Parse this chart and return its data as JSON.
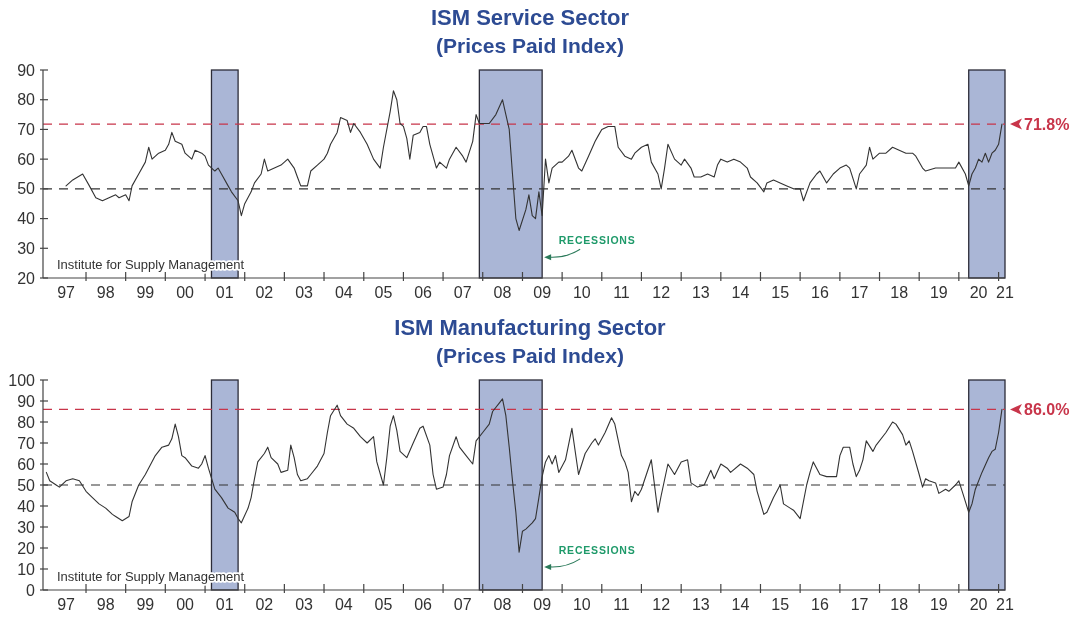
{
  "chart_data": [
    {
      "type": "line",
      "title": "ISM Service Sector",
      "subtitle": "(Prices Paid Index)",
      "series": [
        {
          "color": "#333333",
          "x": [
            "1997-07",
            "1997-09",
            "1997-12",
            "1998-02",
            "1998-04",
            "1998-06",
            "1998-08",
            "1998-10",
            "1998-11",
            "1999-01",
            "1999-02",
            "1999-03",
            "1999-05",
            "1999-07",
            "1999-08",
            "1999-09",
            "1999-11",
            "2000-01",
            "2000-02",
            "2000-03",
            "2000-04",
            "2000-06",
            "2000-07",
            "2000-09",
            "2000-10",
            "2000-12",
            "2001-01",
            "2001-02",
            "2001-04",
            "2001-05",
            "2001-06",
            "2001-08",
            "2001-09",
            "2001-11",
            "2001-12",
            "2002-01",
            "2002-03",
            "2002-04",
            "2002-06",
            "2002-07",
            "2002-08",
            "2002-10",
            "2002-12",
            "2003-02",
            "2003-04",
            "2003-05",
            "2003-06",
            "2003-08",
            "2003-09",
            "2003-11",
            "2004-01",
            "2004-02",
            "2004-03",
            "2004-05",
            "2004-06",
            "2004-08",
            "2004-09",
            "2004-10",
            "2004-12",
            "2005-02",
            "2005-04",
            "2005-06",
            "2005-07",
            "2005-09",
            "2005-10",
            "2005-11",
            "2005-12",
            "2006-01",
            "2006-02",
            "2006-03",
            "2006-04",
            "2006-06",
            "2006-07",
            "2006-08",
            "2006-09",
            "2006-11",
            "2006-12",
            "2007-02",
            "2007-03",
            "2007-05",
            "2007-07",
            "2007-08",
            "2007-10",
            "2007-11",
            "2007-12",
            "2008-01",
            "2008-03",
            "2008-05",
            "2008-07",
            "2008-08",
            "2008-09",
            "2008-10",
            "2008-11",
            "2008-12",
            "2009-02",
            "2009-03",
            "2009-04",
            "2009-05",
            "2009-06",
            "2009-07",
            "2009-08",
            "2009-09",
            "2009-10",
            "2009-12",
            "2010-01",
            "2010-03",
            "2010-04",
            "2010-06",
            "2010-07",
            "2010-09",
            "2010-11",
            "2010-12",
            "2011-01",
            "2011-03",
            "2011-05",
            "2011-06",
            "2011-08",
            "2011-10",
            "2011-11",
            "2012-01",
            "2012-03",
            "2012-04",
            "2012-06",
            "2012-07",
            "2012-08",
            "2012-09",
            "2012-11",
            "2013-01",
            "2013-02",
            "2013-04",
            "2013-05",
            "2013-07",
            "2013-09",
            "2013-11",
            "2013-12",
            "2014-01",
            "2014-03",
            "2014-05",
            "2014-07",
            "2014-09",
            "2014-10",
            "2014-12",
            "2015-02",
            "2015-03",
            "2015-05",
            "2015-07",
            "2015-09",
            "2015-11",
            "2016-01",
            "2016-02",
            "2016-04",
            "2016-06",
            "2016-07",
            "2016-09",
            "2016-11",
            "2017-01",
            "2017-03",
            "2017-04",
            "2017-06",
            "2017-07",
            "2017-09",
            "2017-10",
            "2017-11",
            "2018-01",
            "2018-03",
            "2018-05",
            "2018-07",
            "2018-09",
            "2018-11",
            "2018-12",
            "2019-02",
            "2019-03",
            "2019-06",
            "2019-08",
            "2019-10",
            "2019-12",
            "2020-01",
            "2020-03",
            "2020-04",
            "2020-05",
            "2020-06",
            "2020-07",
            "2020-08",
            "2020-09",
            "2020-10",
            "2020-11",
            "2020-12",
            "2021-01",
            "2021-02"
          ],
          "values": [
            51,
            53,
            55,
            51,
            47,
            46,
            47,
            48,
            47,
            48,
            46,
            51,
            55,
            59,
            64,
            60,
            62,
            63,
            65,
            69,
            66,
            65,
            62,
            60,
            63,
            62,
            61,
            58,
            56,
            57,
            55,
            51,
            49,
            46,
            41,
            45,
            49,
            52,
            55,
            60,
            56,
            57,
            58,
            60,
            57,
            54,
            51,
            51,
            56,
            58,
            60,
            62,
            65,
            69,
            74,
            73,
            69,
            72,
            69,
            65,
            60,
            57,
            64,
            76,
            83,
            80,
            72,
            71,
            67,
            60,
            68,
            69,
            71,
            71,
            65,
            57,
            59,
            57,
            60,
            64,
            61,
            59,
            66,
            75,
            72,
            72,
            72,
            75,
            80,
            75,
            70,
            55,
            40,
            36,
            43,
            48,
            41,
            40,
            49,
            41,
            60,
            52,
            57,
            59,
            59,
            61,
            63,
            57,
            56,
            61,
            66,
            68,
            70,
            71,
            71,
            64,
            61,
            60,
            62,
            64,
            65,
            59,
            55,
            50,
            57,
            65,
            60,
            58,
            60,
            57,
            54,
            54,
            55,
            54,
            58,
            60,
            59,
            60,
            59,
            57,
            54,
            52,
            49,
            52,
            53,
            52,
            51,
            50,
            50,
            46,
            52,
            55,
            56,
            52,
            55,
            57,
            58,
            57,
            50,
            55,
            58,
            64,
            60,
            62,
            62,
            64,
            63,
            62,
            62,
            61,
            57,
            56,
            57,
            57,
            57,
            57,
            59,
            55,
            51,
            55,
            57,
            60,
            59,
            62,
            59,
            62,
            63,
            65,
            71.8
          ]
        }
      ],
      "xlim": [
        "1996-12",
        "2021-03"
      ],
      "xticks": [
        {
          "value": "1997-07",
          "label": "97"
        },
        {
          "value": "1998",
          "label": null
        },
        {
          "value": "1998-07",
          "label": "98"
        },
        {
          "value": "1999",
          "label": null
        },
        {
          "value": "1999-07",
          "label": "99"
        },
        {
          "value": "2000",
          "label": null
        },
        {
          "value": "2000-07",
          "label": "00"
        },
        {
          "value": "2001",
          "label": null
        },
        {
          "value": "2001-07",
          "label": "01"
        },
        {
          "value": "2002",
          "label": null
        },
        {
          "value": "2002-07",
          "label": "02"
        },
        {
          "value": "2003",
          "label": null
        },
        {
          "value": "2003-07",
          "label": "03"
        },
        {
          "value": "2004",
          "label": null
        },
        {
          "value": "2004-07",
          "label": "04"
        },
        {
          "value": "2005",
          "label": null
        },
        {
          "value": "2005-07",
          "label": "05"
        },
        {
          "value": "2006",
          "label": null
        },
        {
          "value": "2006-07",
          "label": "06"
        },
        {
          "value": "2007",
          "label": null
        },
        {
          "value": "2007-07",
          "label": "07"
        },
        {
          "value": "2008",
          "label": null
        },
        {
          "value": "2008-07",
          "label": "08"
        },
        {
          "value": "2009",
          "label": null
        },
        {
          "value": "2009-07",
          "label": "09"
        },
        {
          "value": "2010",
          "label": null
        },
        {
          "value": "2010-07",
          "label": "10"
        },
        {
          "value": "2011",
          "label": null
        },
        {
          "value": "2011-07",
          "label": "11"
        },
        {
          "value": "2012",
          "label": null
        },
        {
          "value": "2012-07",
          "label": "12"
        },
        {
          "value": "2013",
          "label": null
        },
        {
          "value": "2013-07",
          "label": "13"
        },
        {
          "value": "2014",
          "label": null
        },
        {
          "value": "2014-07",
          "label": "14"
        },
        {
          "value": "2015",
          "label": null
        },
        {
          "value": "2015-07",
          "label": "15"
        },
        {
          "value": "2016",
          "label": null
        },
        {
          "value": "2016-07",
          "label": "16"
        },
        {
          "value": "2017",
          "label": null
        },
        {
          "value": "2017-07",
          "label": "17"
        },
        {
          "value": "2018",
          "label": null
        },
        {
          "value": "2018-07",
          "label": "18"
        },
        {
          "value": "2019",
          "label": null
        },
        {
          "value": "2019-07",
          "label": "19"
        },
        {
          "value": "2020",
          "label": null
        },
        {
          "value": "2020-07",
          "label": "20"
        },
        {
          "value": "2021",
          "label": null
        },
        {
          "value": "2021-03",
          "label": "21"
        }
      ],
      "ylim": [
        20,
        90
      ],
      "yticks": [
        20,
        30,
        40,
        50,
        60,
        70,
        80,
        90
      ],
      "ref_lines": [
        {
          "axis": "y",
          "value": 50,
          "color": "#333333",
          "line_style": "dashed"
        },
        {
          "axis": "y",
          "value": 71.8,
          "label": "71.8%",
          "color": "#c8354a",
          "line_style": "dashed"
        }
      ],
      "bands": [
        {
          "axis": "x",
          "from": "2001-03",
          "to": "2001-11",
          "color": "#aab6d6"
        },
        {
          "axis": "x",
          "from": "2007-12",
          "to": "2009-07",
          "color": "#aab6d6"
        },
        {
          "axis": "x",
          "from": "2020-04",
          "to": "2021-03",
          "color": "#aab6d6"
        }
      ],
      "annotations": [
        "Institute for Supply Management",
        {
          "text": "RECESSIONS",
          "x": "2009-07",
          "y": 27
        }
      ]
    },
    {
      "type": "line",
      "title": "ISM Manufacturing Sector",
      "subtitle": "(Prices Paid Index)",
      "series": [
        {
          "color": "#333333",
          "x": [
            "1997-01",
            "1997-02",
            "1997-04",
            "1997-05",
            "1997-07",
            "1997-09",
            "1997-11",
            "1998-01",
            "1998-03",
            "1998-05",
            "1998-07",
            "1998-09",
            "1998-10",
            "1998-12",
            "1999-02",
            "1999-03",
            "1999-05",
            "1999-07",
            "1999-10",
            "1999-12",
            "2000-02",
            "2000-03",
            "2000-04",
            "2000-05",
            "2000-06",
            "2000-07",
            "2000-09",
            "2000-11",
            "2000-12",
            "2001-01",
            "2001-02",
            "2001-04",
            "2001-06",
            "2001-08",
            "2001-10",
            "2001-11",
            "2001-12",
            "2002-02",
            "2002-03",
            "2002-04",
            "2002-05",
            "2002-07",
            "2002-08",
            "2002-09",
            "2002-11",
            "2002-12",
            "2003-02",
            "2003-03",
            "2003-04",
            "2003-05",
            "2003-06",
            "2003-08",
            "2003-09",
            "2003-11",
            "2004-01",
            "2004-02",
            "2004-03",
            "2004-05",
            "2004-06",
            "2004-08",
            "2004-10",
            "2004-12",
            "2005-02",
            "2005-04",
            "2005-05",
            "2005-07",
            "2005-08",
            "2005-09",
            "2005-10",
            "2005-11",
            "2005-12",
            "2006-02",
            "2006-04",
            "2006-06",
            "2006-07",
            "2006-09",
            "2006-10",
            "2006-11",
            "2007-01",
            "2007-02",
            "2007-03",
            "2007-05",
            "2007-06",
            "2007-08",
            "2007-10",
            "2007-11",
            "2008-01",
            "2008-03",
            "2008-04",
            "2008-06",
            "2008-07",
            "2008-08",
            "2008-09",
            "2008-10",
            "2008-11",
            "2008-12",
            "2009-01",
            "2009-02",
            "2009-04",
            "2009-05",
            "2009-06",
            "2009-07",
            "2009-08",
            "2009-09",
            "2009-10",
            "2009-11",
            "2009-12",
            "2010-02",
            "2010-04",
            "2010-06",
            "2010-08",
            "2010-10",
            "2010-11",
            "2010-12",
            "2011-02",
            "2011-04",
            "2011-05",
            "2011-07",
            "2011-08",
            "2011-09",
            "2011-10",
            "2011-11",
            "2011-12",
            "2012-01",
            "2012-04",
            "2012-06",
            "2012-07",
            "2012-09",
            "2012-11",
            "2013-01",
            "2013-03",
            "2013-04",
            "2013-06",
            "2013-08",
            "2013-10",
            "2013-11",
            "2014-01",
            "2014-03",
            "2014-04",
            "2014-07",
            "2014-09",
            "2014-11",
            "2014-12",
            "2015-02",
            "2015-03",
            "2015-05",
            "2015-07",
            "2015-08",
            "2015-10",
            "2015-11",
            "2016-01",
            "2016-03",
            "2016-04",
            "2016-05",
            "2016-07",
            "2016-09",
            "2016-12",
            "2017-01",
            "2017-02",
            "2017-04",
            "2017-05",
            "2017-06",
            "2017-07",
            "2017-08",
            "2017-09",
            "2017-11",
            "2017-12",
            "2018-03",
            "2018-05",
            "2018-06",
            "2018-08",
            "2018-09",
            "2018-10",
            "2018-11",
            "2019-01",
            "2019-02",
            "2019-03",
            "2019-04",
            "2019-06",
            "2019-07",
            "2019-09",
            "2019-10",
            "2019-12",
            "2020-01",
            "2020-02",
            "2020-04",
            "2020-05",
            "2020-06",
            "2020-08",
            "2020-10",
            "2020-11",
            "2020-12",
            "2021-01",
            "2021-02"
          ],
          "values": [
            56,
            52,
            50,
            49,
            52,
            53,
            52,
            47,
            44,
            41,
            39,
            36,
            35,
            33,
            35,
            42,
            50,
            55,
            64,
            68,
            69,
            72,
            79,
            73,
            64,
            63,
            59,
            58,
            60,
            64,
            58,
            48,
            44,
            39,
            37,
            34,
            32,
            39,
            44,
            53,
            61,
            65,
            68,
            63,
            60,
            56,
            57,
            69,
            63,
            55,
            52,
            53,
            55,
            59,
            65,
            75,
            83,
            88,
            83,
            79,
            77,
            73,
            70,
            73,
            61,
            50,
            63,
            78,
            83,
            76,
            66,
            63,
            70,
            77,
            78,
            69,
            55,
            48,
            49,
            55,
            64,
            73,
            68,
            64,
            60,
            71,
            75,
            79,
            85,
            89,
            91,
            83,
            68,
            52,
            37,
            18,
            28,
            29,
            32,
            34,
            44,
            54,
            61,
            64,
            60,
            64,
            56,
            62,
            77,
            55,
            65,
            70,
            72,
            69,
            75,
            82,
            79,
            64,
            61,
            56,
            42,
            47,
            45,
            48,
            62,
            37,
            45,
            60,
            55,
            61,
            62,
            51,
            49,
            50,
            57,
            53,
            60,
            58,
            56,
            60,
            58,
            55,
            47,
            36,
            37,
            44,
            50,
            41,
            39,
            38,
            34,
            50,
            56,
            61,
            55,
            54,
            54,
            64,
            68,
            68,
            60,
            54,
            57,
            62,
            71,
            66,
            69,
            75,
            80,
            79,
            74,
            69,
            71,
            66,
            55,
            49,
            53,
            52,
            51,
            46,
            48,
            47,
            50,
            52,
            47,
            37,
            41,
            48,
            56,
            63,
            66,
            67,
            75,
            86
          ]
        }
      ],
      "xlim": [
        "1996-12",
        "2021-03"
      ],
      "xticks": [
        {
          "value": "1997-07",
          "label": "97"
        },
        {
          "value": "1998",
          "label": null
        },
        {
          "value": "1998-07",
          "label": "98"
        },
        {
          "value": "1999",
          "label": null
        },
        {
          "value": "1999-07",
          "label": "99"
        },
        {
          "value": "2000",
          "label": null
        },
        {
          "value": "2000-07",
          "label": "00"
        },
        {
          "value": "2001",
          "label": null
        },
        {
          "value": "2001-07",
          "label": "01"
        },
        {
          "value": "2002",
          "label": null
        },
        {
          "value": "2002-07",
          "label": "02"
        },
        {
          "value": "2003",
          "label": null
        },
        {
          "value": "2003-07",
          "label": "03"
        },
        {
          "value": "2004",
          "label": null
        },
        {
          "value": "2004-07",
          "label": "04"
        },
        {
          "value": "2005",
          "label": null
        },
        {
          "value": "2005-07",
          "label": "05"
        },
        {
          "value": "2006",
          "label": null
        },
        {
          "value": "2006-07",
          "label": "06"
        },
        {
          "value": "2007",
          "label": null
        },
        {
          "value": "2007-07",
          "label": "07"
        },
        {
          "value": "2008",
          "label": null
        },
        {
          "value": "2008-07",
          "label": "08"
        },
        {
          "value": "2009",
          "label": null
        },
        {
          "value": "2009-07",
          "label": "09"
        },
        {
          "value": "2010",
          "label": null
        },
        {
          "value": "2010-07",
          "label": "10"
        },
        {
          "value": "2011",
          "label": null
        },
        {
          "value": "2011-07",
          "label": "11"
        },
        {
          "value": "2012",
          "label": null
        },
        {
          "value": "2012-07",
          "label": "12"
        },
        {
          "value": "2013",
          "label": null
        },
        {
          "value": "2013-07",
          "label": "13"
        },
        {
          "value": "2014",
          "label": null
        },
        {
          "value": "2014-07",
          "label": "14"
        },
        {
          "value": "2015",
          "label": null
        },
        {
          "value": "2015-07",
          "label": "15"
        },
        {
          "value": "2016",
          "label": null
        },
        {
          "value": "2016-07",
          "label": "16"
        },
        {
          "value": "2017",
          "label": null
        },
        {
          "value": "2017-07",
          "label": "17"
        },
        {
          "value": "2018",
          "label": null
        },
        {
          "value": "2018-07",
          "label": "18"
        },
        {
          "value": "2019",
          "label": null
        },
        {
          "value": "2019-07",
          "label": "19"
        },
        {
          "value": "2020",
          "label": null
        },
        {
          "value": "2020-07",
          "label": "20"
        },
        {
          "value": "2021",
          "label": null
        },
        {
          "value": "2021-03",
          "label": "21"
        }
      ],
      "ylim": [
        0,
        100
      ],
      "yticks": [
        0,
        10,
        20,
        30,
        40,
        50,
        60,
        70,
        80,
        90,
        100
      ],
      "ref_lines": [
        {
          "axis": "y",
          "value": 50,
          "color": "#333333",
          "line_style": "dashed"
        },
        {
          "axis": "y",
          "value": 86.0,
          "label": "86.0%",
          "color": "#c8354a",
          "line_style": "dashed"
        }
      ],
      "bands": [
        {
          "axis": "x",
          "from": "2001-03",
          "to": "2001-11",
          "color": "#aab6d6"
        },
        {
          "axis": "x",
          "from": "2007-12",
          "to": "2009-07",
          "color": "#aab6d6"
        },
        {
          "axis": "x",
          "from": "2020-04",
          "to": "2021-03",
          "color": "#aab6d6"
        }
      ],
      "annotations": [
        "Institute for Supply Management",
        {
          "text": "RECESSIONS",
          "x": "2009-07",
          "y": 11
        }
      ]
    }
  ]
}
